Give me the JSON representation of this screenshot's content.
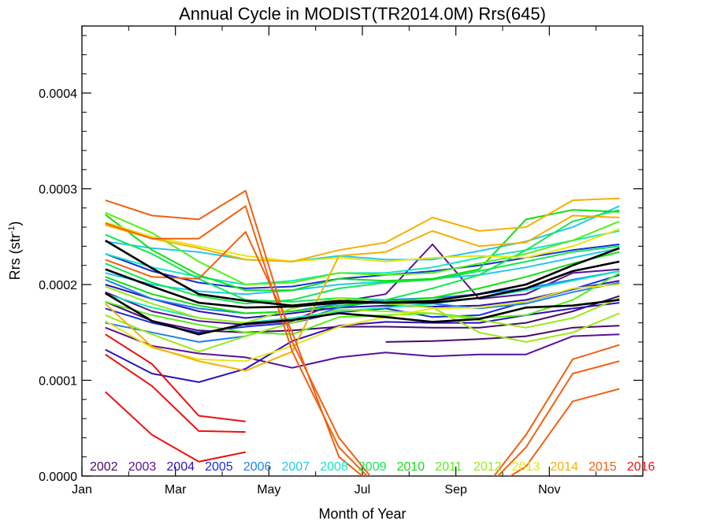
{
  "chart_data": {
    "type": "line",
    "title": "Annual Cycle in MODIST(TR2014.0M) Rrs(645)",
    "xlabel": "Month of Year",
    "ylabel_main": "Rrs (str",
    "ylabel_sup": "-1",
    "ylabel_close": ")",
    "ylim": [
      0,
      0.00047
    ],
    "xlim": [
      1,
      13
    ],
    "x_ticks": [
      {
        "x": 1,
        "label": "Jan"
      },
      {
        "x": 3,
        "label": "Mar"
      },
      {
        "x": 5,
        "label": "May"
      },
      {
        "x": 7,
        "label": "Jul"
      },
      {
        "x": 9,
        "label": "Sep"
      },
      {
        "x": 11,
        "label": "Nov"
      }
    ],
    "y_ticks": [
      {
        "y": 0,
        "label": "0.0000"
      },
      {
        "y": 0.0001,
        "label": "0.0001"
      },
      {
        "y": 0.0002,
        "label": "0.0002"
      },
      {
        "y": 0.0003,
        "label": "0.0003"
      },
      {
        "y": 0.0004,
        "label": "0.0004"
      }
    ],
    "grid": false,
    "legend_position": "bottom inside plot",
    "x": [
      1.5,
      2.5,
      3.5,
      4.5,
      5.5,
      6.5,
      7.5,
      8.5,
      9.5,
      10.5,
      11.5,
      12.5
    ],
    "series": [
      {
        "name": "2002",
        "color": "#4a0a6e",
        "lines": [
          [
            0.000182,
            0.000162,
            0.000152,
            0.00015,
            0.000152,
            0.000156,
            0.000156,
            0.000155,
            0.000155,
            0.00016,
            0.000172,
            0.000188
          ],
          [
            null,
            null,
            null,
            null,
            null,
            null,
            0.00014,
            0.000141,
            0.000143,
            0.000146,
            0.000155,
            0.000157
          ]
        ]
      },
      {
        "name": "2003",
        "color": "#5a109a",
        "lines": [
          [
            0.000192,
            0.000172,
            0.000162,
            0.000158,
            0.000162,
            0.000182,
            0.00019,
            0.000242,
            0.000185,
            0.00019,
            0.000212,
            0.000216
          ],
          [
            0.000155,
            0.000136,
            0.000128,
            0.000124,
            0.000113,
            0.000124,
            0.000129,
            0.000125,
            0.000127,
            0.000127,
            0.000146,
            0.000148
          ]
        ]
      },
      {
        "name": "2004",
        "color": "#2a12b8",
        "lines": [
          [
            0.000132,
            0.000107,
            9.8e-05,
            0.000112,
            0.000141,
            0.000157,
            0.000161,
            0.00016,
            0.00016,
            0.000168,
            0.000175,
            0.000181
          ],
          [
            0.0002,
            0.000185,
            0.000172,
            0.000165,
            0.00017,
            0.000176,
            0.000178,
            0.000177,
            0.000178,
            0.000184,
            0.000195,
            0.000204
          ]
        ]
      },
      {
        "name": "2005",
        "color": "#1530e0",
        "lines": [
          [
            0.000175,
            0.00016,
            0.00015,
            0.000156,
            0.00016,
            0.000171,
            0.000175,
            0.000166,
            0.000168,
            0.000182,
            0.000195,
            0.00021
          ],
          [
            0.000232,
            0.000214,
            0.000202,
            0.000196,
            0.000198,
            0.000206,
            0.00021,
            0.000214,
            0.00022,
            0.000228,
            0.000236,
            0.000242
          ]
        ]
      },
      {
        "name": "2006",
        "color": "#1f82f0",
        "lines": [
          [
            0.000205,
            0.000185,
            0.000175,
            0.00017,
            0.000172,
            0.00018,
            0.000184,
            0.000186,
            0.00019,
            0.000196,
            0.000205,
            0.000214
          ],
          [
            0.00016,
            0.00015,
            0.00014,
            0.000146,
            0.00016,
            0.000176,
            0.000184,
            0.00018,
            0.000175,
            0.00018,
            0.000192,
            0.000202
          ]
        ]
      },
      {
        "name": "2007",
        "color": "#20c8f0",
        "lines": [
          [
            0.000245,
            0.000238,
            0.000234,
            0.000226,
            0.000224,
            0.00023,
            0.000226,
            0.000226,
            0.000235,
            0.000245,
            0.00026,
            0.000282
          ],
          [
            0.000212,
            0.0002,
            0.000193,
            0.00019,
            0.000194,
            0.0002,
            0.000203,
            0.000206,
            0.00021,
            0.000218,
            0.000228,
            0.000238
          ]
        ]
      },
      {
        "name": "2008",
        "color": "#10e8c0",
        "lines": [
          [
            0.000232,
            0.000218,
            0.000208,
            0.0002,
            0.000204,
            0.000212,
            0.000212,
            0.000218,
            0.000228,
            0.000236,
            0.000246,
            0.000256
          ],
          [
            0.00019,
            0.000176,
            0.000165,
            0.00016,
            0.000165,
            0.000172,
            0.000176,
            0.00018,
            0.000186,
            0.000194,
            0.000204,
            0.000214
          ]
        ]
      },
      {
        "name": "2009",
        "color": "#10e850",
        "lines": [
          [
            0.000252,
            0.000232,
            0.000206,
            0.000184,
            0.000182,
            0.000186,
            0.000184,
            0.000196,
            0.00021,
            0.000236,
            0.000266,
            0.000278
          ],
          [
            0.000222,
            0.000202,
            0.000188,
            0.00018,
            0.000184,
            0.000196,
            0.000202,
            0.000205,
            0.000214,
            0.000224,
            0.000234,
            0.00024
          ]
        ]
      },
      {
        "name": "2010",
        "color": "#10e010",
        "lines": [
          [
            0.000273,
            0.000236,
            0.00021,
            0.000194,
            0.000194,
            0.000206,
            0.000204,
            0.000206,
            0.000216,
            0.000268,
            0.000278,
            0.000276
          ],
          [
            0.000208,
            0.00019,
            0.000178,
            0.00017,
            0.000172,
            0.000178,
            0.000182,
            0.000186,
            0.000196,
            0.000208,
            0.000222,
            0.000234
          ]
        ]
      },
      {
        "name": "2011",
        "color": "#58ee18",
        "lines": [
          [
            0.000275,
            0.000254,
            0.000224,
            0.0002,
            0.000202,
            0.000212,
            0.00021,
            0.000212,
            0.000222,
            0.000232,
            0.000246,
            0.000266
          ],
          [
            0.000182,
            0.000168,
            0.000158,
            0.00015,
            0.000148,
            0.000166,
            0.000168,
            0.00017,
            0.000165,
            0.000168,
            0.000184,
            0.000212
          ]
        ]
      },
      {
        "name": "2012",
        "color": "#98ea18",
        "lines": [
          [
            0.000168,
            0.000148,
            0.00013,
            0.000146,
            0.00016,
            0.000174,
            0.000172,
            0.00017,
            0.000163,
            0.000155,
            0.000165,
            0.000186
          ],
          [
            0.000198,
            0.00018,
            0.000165,
            0.00016,
            0.000175,
            0.000186,
            0.00018,
            0.000176,
            0.00015,
            0.00014,
            0.00015,
            0.00017
          ]
        ]
      },
      {
        "name": "2013",
        "color": "#e6e612",
        "lines": [
          [
            0.000265,
            0.00025,
            0.00024,
            0.00023,
            0.000224,
            0.000228,
            0.000224,
            0.000228,
            0.00023,
            0.000228,
            0.00024,
            0.000258
          ],
          [
            0.000162,
            0.000134,
            0.000122,
            0.00012,
            0.000136,
            0.000156,
            0.000166,
            0.000175,
            0.000176,
            0.000182,
            0.000196,
            0.0002
          ]
        ]
      },
      {
        "name": "2014",
        "color": "#f5b000",
        "lines": [
          [
            0.000262,
            0.000248,
            0.000238,
            0.000226,
            0.000224,
            0.000236,
            0.000244,
            0.00027,
            0.000256,
            0.00026,
            0.000288,
            0.00029
          ],
          [
            0.00018,
            0.000135,
            0.00012,
            0.00011,
            0.00013,
            0.00023,
            0.000234,
            0.000256,
            0.00024,
            0.000244,
            0.000272,
            0.00027
          ]
        ]
      },
      {
        "name": "2015",
        "color": "#f06010",
        "lines": [
          [
            0.000288,
            0.000272,
            0.000268,
            0.000298,
            0.00014,
            4e-05,
            -2e-05,
            null,
            -2e-05,
            4.3e-05,
            0.000122,
            0.000137
          ],
          [
            0.000264,
            0.000248,
            0.000248,
            0.000282,
            0.00013,
            3e-05,
            -2e-05,
            null,
            -2e-05,
            3e-05,
            0.000107,
            0.00012
          ],
          [
            0.000226,
            0.000208,
            0.000206,
            0.000255,
            0.00015,
            2e-05,
            -2e-05,
            null,
            -2e-05,
            1e-05,
            7.8e-05,
            9.1e-05
          ]
        ]
      },
      {
        "name": "2016",
        "color": "#ee1010",
        "lines": [
          [
            0.000148,
            0.000117,
            6.3e-05,
            5.7e-05,
            null,
            null,
            null,
            null,
            null,
            null,
            null,
            null
          ],
          [
            0.000127,
            9.4e-05,
            4.7e-05,
            4.6e-05,
            null,
            null,
            null,
            null,
            null,
            null,
            null,
            null
          ],
          [
            8.8e-05,
            4.3e-05,
            1.5e-05,
            2.5e-05,
            null,
            null,
            null,
            null,
            null,
            null,
            null,
            null
          ]
        ]
      }
    ],
    "black_lines": {
      "color": "#000000",
      "lines": [
        [
          0.000246,
          0.000217,
          0.00019,
          0.000183,
          0.000178,
          0.000183,
          0.000181,
          0.000183,
          0.00019,
          0.0002,
          0.00022,
          0.000238
        ],
        [
          0.000216,
          0.000198,
          0.000181,
          0.000176,
          0.000177,
          0.000181,
          0.000181,
          0.000181,
          0.000186,
          0.000196,
          0.000214,
          0.000224
        ],
        [
          0.000191,
          0.000162,
          0.000148,
          0.000159,
          0.000163,
          0.00017,
          0.000166,
          0.000161,
          0.000164,
          0.000176,
          0.000178,
          0.000184
        ]
      ]
    }
  }
}
